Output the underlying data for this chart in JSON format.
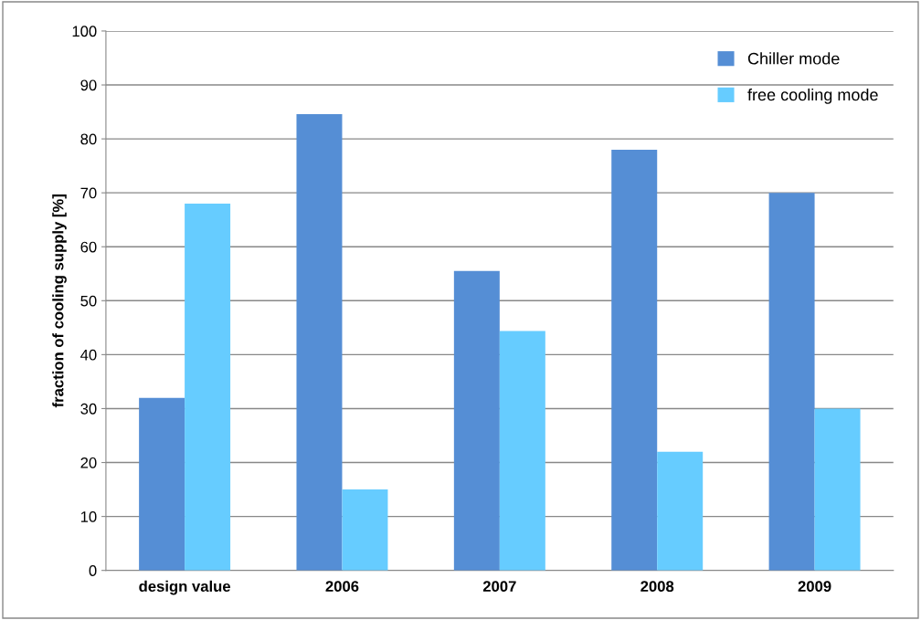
{
  "chart_data": {
    "type": "bar",
    "ylabel": "fraction of cooling supply [%]",
    "categories": [
      "design value",
      "2006",
      "2007",
      "2008",
      "2009"
    ],
    "series": [
      {
        "name": "Chiller mode",
        "color": "#558ed5",
        "values": [
          32,
          84.6,
          55.5,
          78,
          70
        ]
      },
      {
        "name": "free cooling mode",
        "color": "#66ccff",
        "values": [
          68,
          15,
          44.4,
          22,
          30
        ]
      }
    ],
    "ylim": [
      0,
      100
    ],
    "yticks": [
      0,
      10,
      20,
      30,
      40,
      50,
      60,
      70,
      80,
      90,
      100
    ],
    "grid": "y",
    "legend": "top right"
  }
}
